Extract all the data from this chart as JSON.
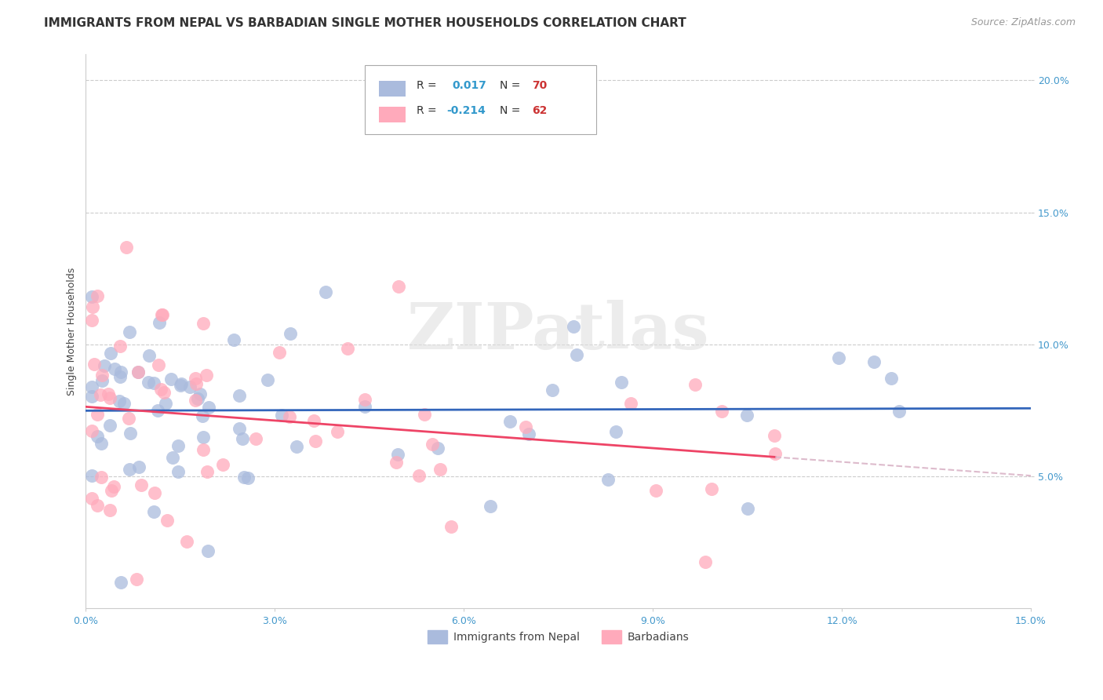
{
  "title": "IMMIGRANTS FROM NEPAL VS BARBADIAN SINGLE MOTHER HOUSEHOLDS CORRELATION CHART",
  "source": "Source: ZipAtlas.com",
  "ylabel": "Single Mother Households",
  "xlim": [
    0.0,
    0.15
  ],
  "ylim": [
    0.0,
    0.21
  ],
  "x_ticks": [
    0.0,
    0.03,
    0.06,
    0.09,
    0.12,
    0.15
  ],
  "x_tick_labels": [
    "0.0%",
    "3.0%",
    "6.0%",
    "9.0%",
    "12.0%",
    "15.0%"
  ],
  "y_ticks": [
    0.05,
    0.1,
    0.15,
    0.2
  ],
  "y_tick_labels": [
    "5.0%",
    "10.0%",
    "15.0%",
    "20.0%"
  ],
  "nepal_R": 0.017,
  "nepal_N": 70,
  "barbadian_R": -0.214,
  "barbadian_N": 62,
  "nepal_color": "#aabbdd",
  "barbadian_color": "#ffaabb",
  "nepal_line_color": "#3366bb",
  "barbadian_line_color": "#ee4466",
  "barbadian_dashed_color": "#ddbbcc",
  "watermark_text": "ZIPatlas",
  "background_color": "#ffffff",
  "grid_color": "#cccccc",
  "title_fontsize": 11,
  "source_fontsize": 9,
  "axis_label_fontsize": 9,
  "tick_fontsize": 9,
  "legend_fontsize": 10,
  "legend_R_color": "#3399cc",
  "legend_N_color": "#cc3333",
  "nepal_scatter_seed": 1234,
  "barb_scatter_seed": 5678
}
